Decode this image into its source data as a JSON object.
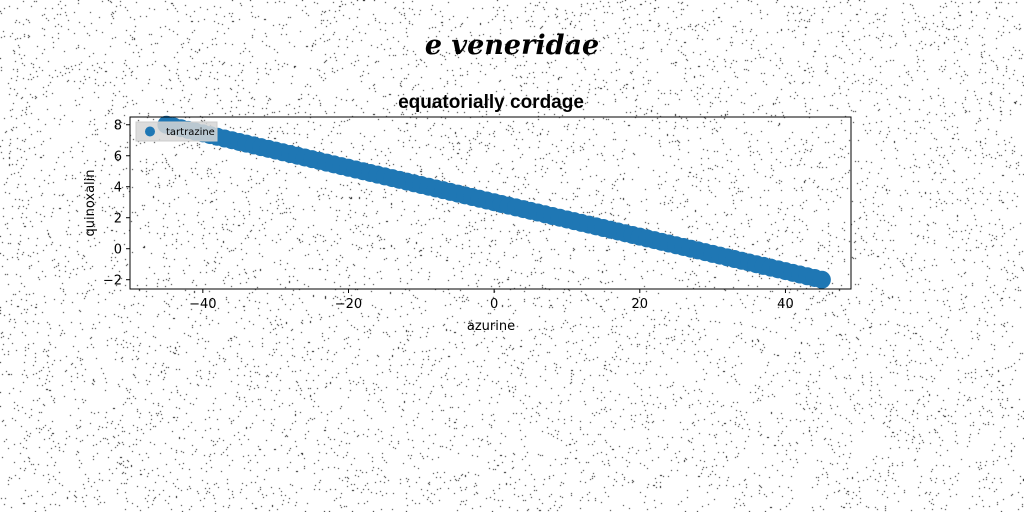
{
  "figure": {
    "suptitle": "e veneridae"
  },
  "chart_data": {
    "type": "scatter",
    "title": "equatorially cordage",
    "xlabel": "azurine",
    "ylabel": "quinoxalin",
    "xlim": [
      -50,
      49
    ],
    "ylim": [
      -2.6,
      8.5
    ],
    "xticks": [
      -40,
      -20,
      0,
      20,
      40
    ],
    "yticks": [
      -2,
      0,
      2,
      4,
      6,
      8
    ],
    "grid": false,
    "legend_position": "upper-left",
    "series": [
      {
        "name": "tartrazine",
        "color": "#1f77b4",
        "x_start": -45,
        "x_end": 45,
        "y_start": 8,
        "y_end": -2,
        "n_points": 91
      }
    ]
  }
}
